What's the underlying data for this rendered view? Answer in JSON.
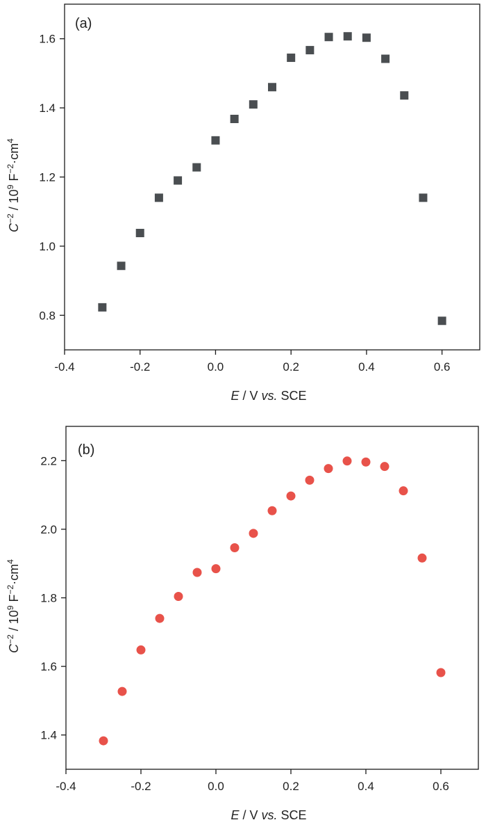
{
  "chart_data": [
    {
      "type": "scatter",
      "panel_label": "(a)",
      "xlabel": {
        "italic": "E",
        "rest": " / V ",
        "italic2": "vs.",
        "rest2": " SCE"
      },
      "ylabel": {
        "base": "C",
        "exp1": "−2",
        "mid": " / 10",
        "exp2": "9",
        "unit": " F",
        "exp3": "−2",
        "unit2": "·cm",
        "exp4": "4"
      },
      "xlim": [
        -0.4,
        0.7
      ],
      "ylim": [
        0.7,
        1.7
      ],
      "xticks": [
        -0.4,
        -0.2,
        0.0,
        0.2,
        0.4,
        0.6
      ],
      "xtick_labels": [
        "-0.4",
        "-0.2",
        "0.0",
        "0.2",
        "0.4",
        "0.6"
      ],
      "yticks": [
        0.8,
        1.0,
        1.2,
        1.4,
        1.6
      ],
      "ytick_labels": [
        "0.8",
        "1.0",
        "1.2",
        "1.4",
        "1.6"
      ],
      "grid": false,
      "marker": "square",
      "color": "#4a4e51",
      "x": [
        -0.3,
        -0.25,
        -0.2,
        -0.15,
        -0.1,
        -0.05,
        0.0,
        0.05,
        0.1,
        0.15,
        0.2,
        0.25,
        0.3,
        0.35,
        0.4,
        0.45,
        0.5,
        0.55,
        0.6
      ],
      "y": [
        0.823,
        0.943,
        1.038,
        1.14,
        1.19,
        1.228,
        1.306,
        1.368,
        1.41,
        1.46,
        1.545,
        1.567,
        1.605,
        1.607,
        1.603,
        1.542,
        1.436,
        1.14,
        0.784
      ]
    },
    {
      "type": "scatter",
      "panel_label": "(b)",
      "xlabel": {
        "italic": "E",
        "rest": " / V ",
        "italic2": "vs.",
        "rest2": " SCE"
      },
      "ylabel": {
        "base": "C",
        "exp1": "−2",
        "mid": " / 10",
        "exp2": "9",
        "unit": " F",
        "exp3": "−2",
        "unit2": "·cm",
        "exp4": "4"
      },
      "xlim": [
        -0.4,
        0.7
      ],
      "ylim": [
        1.3,
        2.3
      ],
      "xticks": [
        -0.4,
        -0.2,
        0.0,
        0.2,
        0.4,
        0.6
      ],
      "xtick_labels": [
        "-0.4",
        "-0.2",
        "0.0",
        "0.2",
        "0.4",
        "0.6"
      ],
      "yticks": [
        1.4,
        1.6,
        1.8,
        2.0,
        2.2
      ],
      "ytick_labels": [
        "1.4",
        "1.6",
        "1.8",
        "2.0",
        "2.2"
      ],
      "grid": false,
      "marker": "circle",
      "color": "#e8524a",
      "x": [
        -0.3,
        -0.25,
        -0.2,
        -0.15,
        -0.1,
        -0.05,
        0.0,
        0.05,
        0.1,
        0.15,
        0.2,
        0.25,
        0.3,
        0.35,
        0.4,
        0.45,
        0.5,
        0.55,
        0.6
      ],
      "y": [
        1.383,
        1.527,
        1.648,
        1.74,
        1.804,
        1.874,
        1.885,
        1.946,
        1.988,
        2.054,
        2.097,
        2.143,
        2.177,
        2.199,
        2.196,
        2.183,
        2.112,
        1.916,
        1.582
      ]
    }
  ]
}
